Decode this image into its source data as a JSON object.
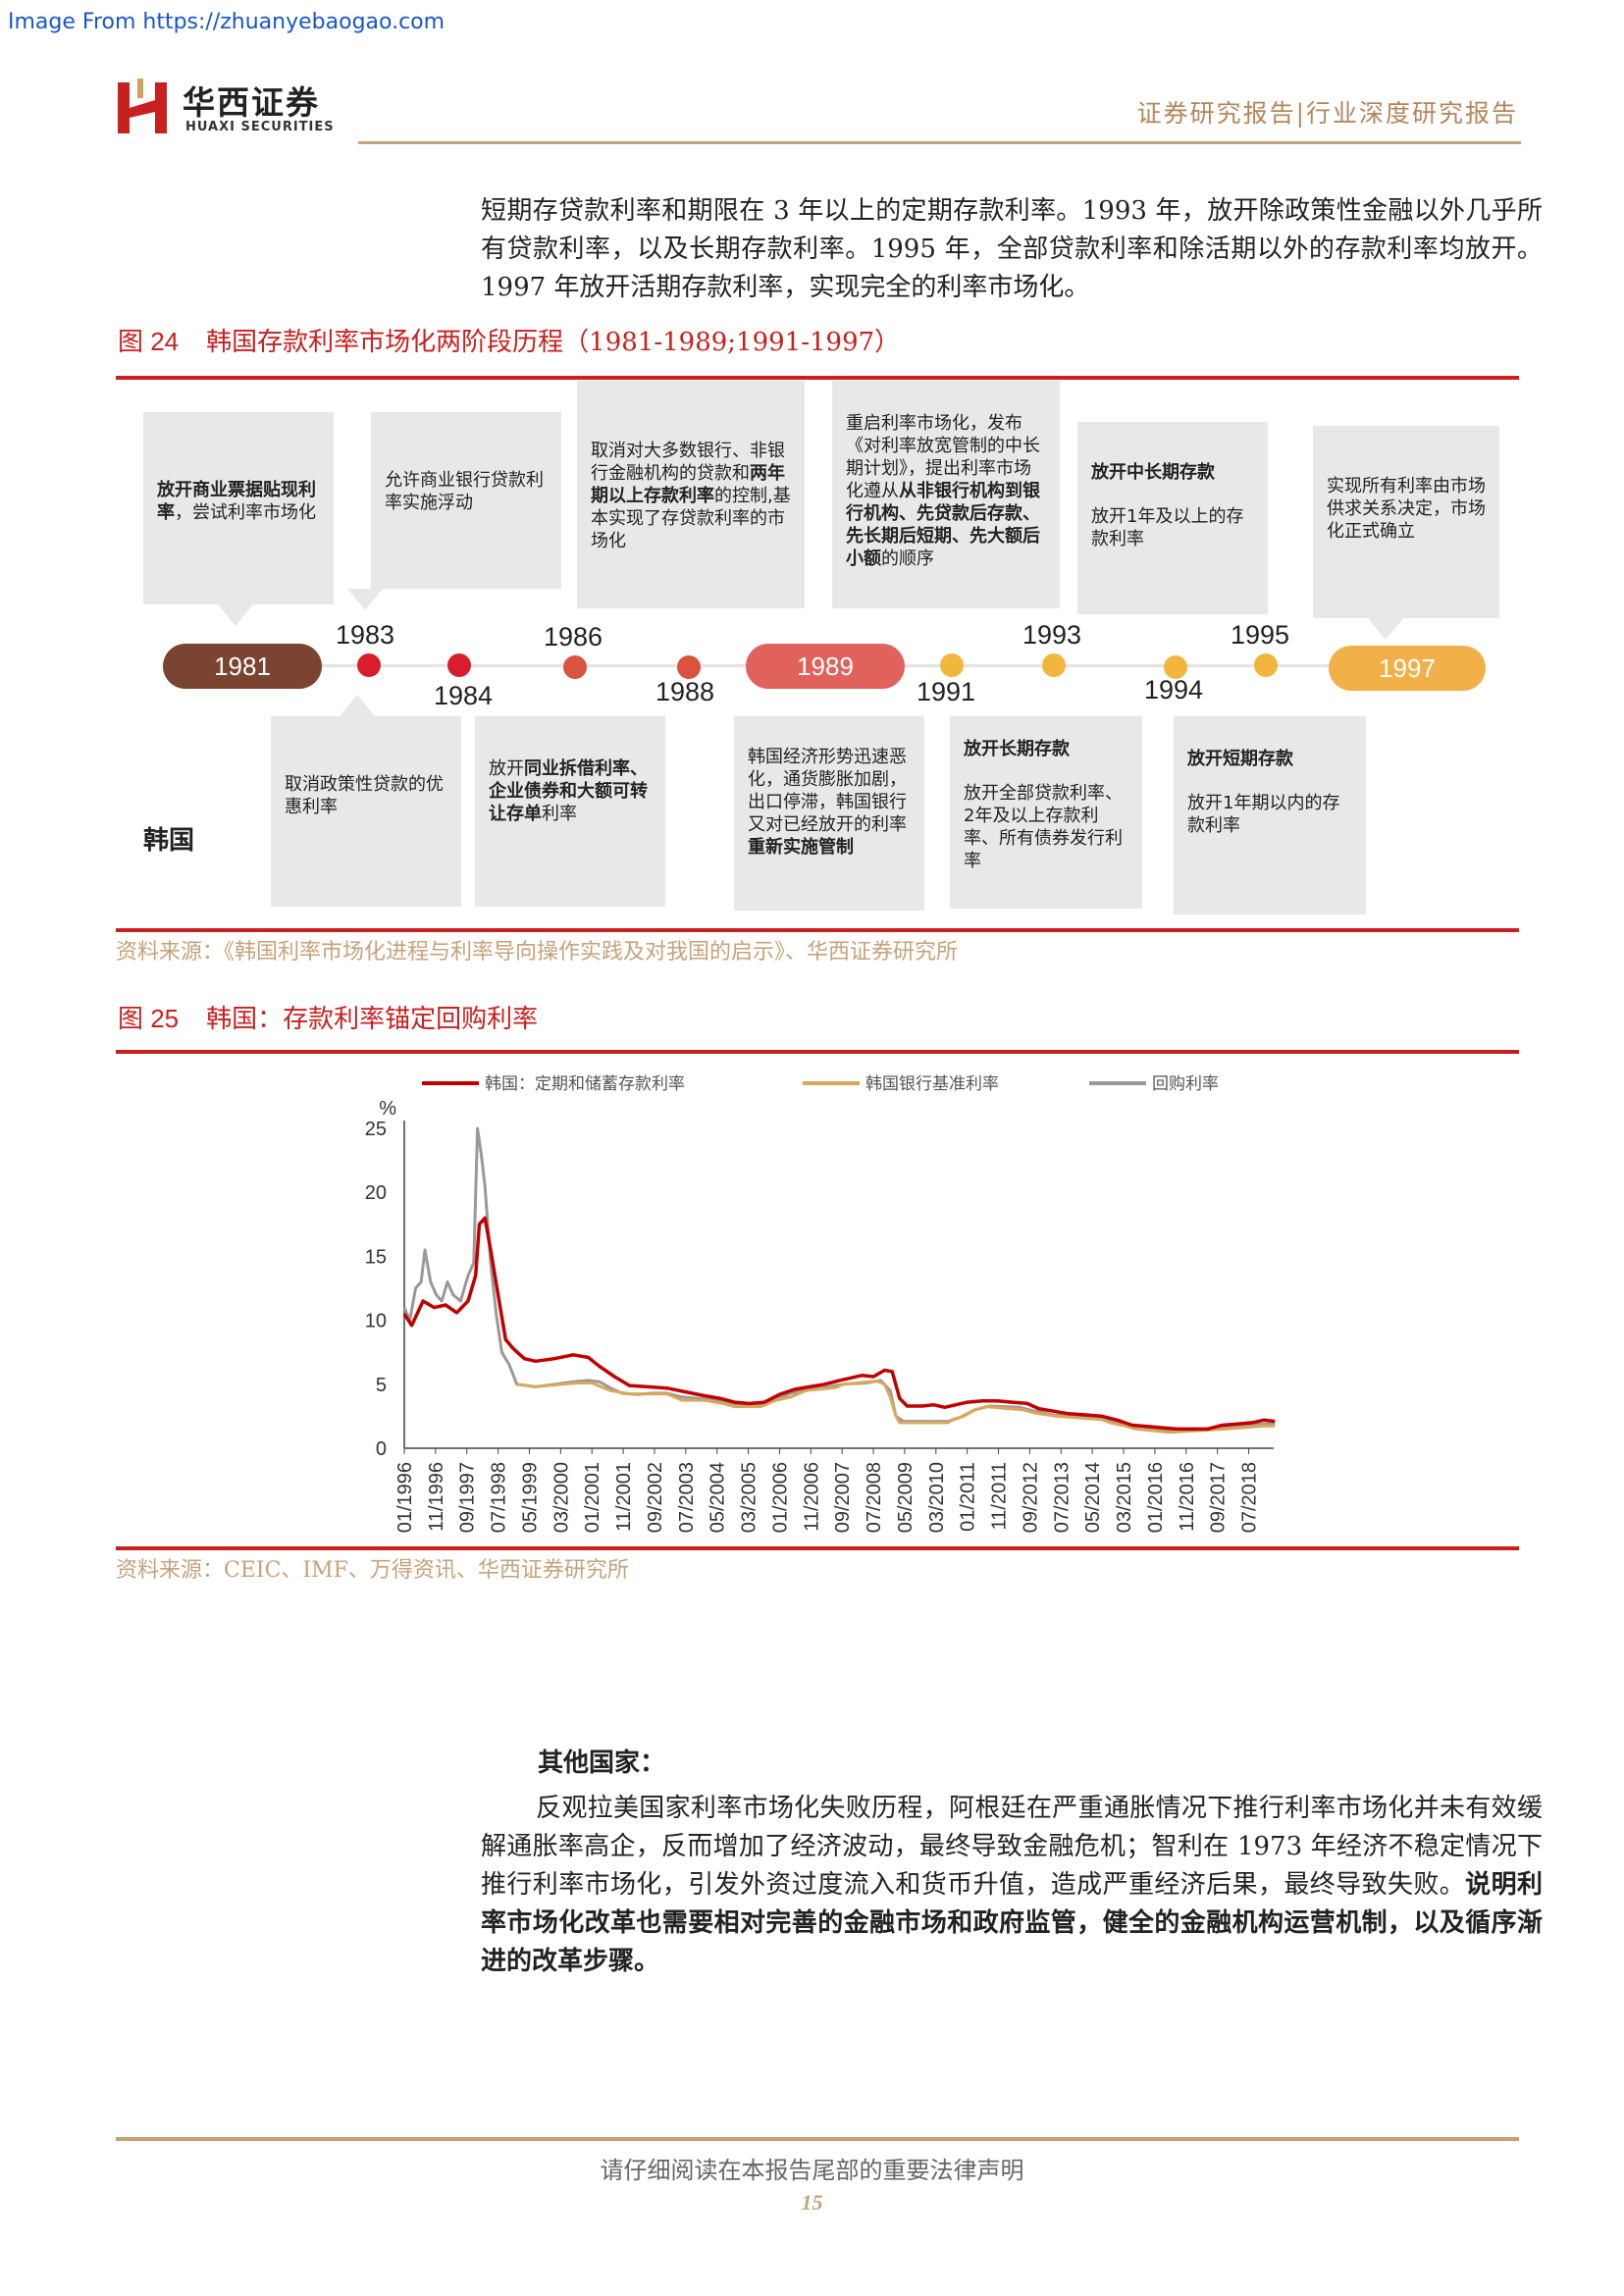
{
  "source_url": "Image From https://zhuanyebaogao.com",
  "header": {
    "logo_cn": "华西证券",
    "logo_en": "HUAXI SECURITIES",
    "report_type": "证券研究报告|行业深度研究报告"
  },
  "intro_paragraph": "短期存贷款利率和期限在 3 年以上的定期存款利率。1993 年，放开除政策性金融以外几乎所有贷款利率，以及长期存款利率。1995 年，全部贷款利率和除活期以外的存款利率均放开。1997 年放开活期存款利率，实现完全的利率市场化。",
  "figure24": {
    "number": "图 24",
    "title": "韩国存款利率市场化两阶段历程（1981-1989;1991-1997）",
    "country_label": "韩国",
    "years": {
      "y1981": "1981",
      "y1983": "1983",
      "y1984": "1984",
      "y1986": "1986",
      "y1988": "1988",
      "y1989": "1989",
      "y1991": "1991",
      "y1993": "1993",
      "y1994": "1994",
      "y1995": "1995",
      "y1997": "1997"
    },
    "top_boxes": {
      "b1981_bold": "放开商业票据贴现利率",
      "b1981_rest": "，尝试利率市场化",
      "b1983": "允许商业银行贷款利率实施浮动",
      "b1988_a": "取消对大多数银行、非银行金融机构的贷款和",
      "b1988_bold": "两年期以上存款利率",
      "b1988_b": "的控制,基本实现了存贷款利率的市场化",
      "b1991_a": "重启利率市场化，发布《对利率放宽管制的中长期计划》，提出利率市场化遵从",
      "b1991_bold": "从非银行机构到银行机构、先贷款后存款、先长期后短期、先大额后小额",
      "b1991_b": "的顺序",
      "b1993_title": "放开中长期存款",
      "b1993_text": "放开1年及以上的存款利率",
      "b1997": "实现所有利率由市场供求关系决定，市场化正式确立"
    },
    "bottom_boxes": {
      "b1984": "取消政策性贷款的优惠利率",
      "b1986_a": "放开",
      "b1986_bold": "同业拆借利率、企业债券和大额可转让存单",
      "b1986_b": "利率",
      "b1989_a": "韩国经济形势迅速恶化，通货膨胀加剧，出口停滞，韩国银行又对已经放开的利率",
      "b1989_bold": "重新实施管制",
      "b1994_title": "放开长期存款",
      "b1994_text": "放开全部贷款利率、2年及以上存款利率、所有债券发行利率",
      "b1995_title": "放开短期存款",
      "b1995_text": "放开1年期以内的存款利率"
    },
    "source": "资料来源：《韩国利率市场化进程与利率导向操作实践及对我国的启示》、华西证券研究所"
  },
  "figure25": {
    "number": "图 25",
    "title": "韩国：存款利率锚定回购利率",
    "source": "资料来源：CEIC、IMF、万得资讯、华西证券研究所"
  },
  "chart_data": {
    "type": "line",
    "ylabel": "%",
    "ylim": [
      0,
      25
    ],
    "yticks": [
      0,
      5,
      10,
      15,
      20,
      25
    ],
    "x_tick_labels": [
      "01/1996",
      "11/1996",
      "09/1997",
      "07/1998",
      "05/1999",
      "03/2000",
      "01/2001",
      "11/2001",
      "09/2002",
      "07/2003",
      "05/2004",
      "03/2005",
      "01/2006",
      "11/2006",
      "09/2007",
      "07/2008",
      "05/2009",
      "03/2010",
      "01/2011",
      "11/2011",
      "09/2012",
      "07/2013",
      "05/2014",
      "03/2015",
      "01/2016",
      "11/2016",
      "09/2017",
      "07/2018"
    ],
    "x_start": "1996-01",
    "x_end": "2019-03",
    "series": [
      {
        "name": "韩国：定期和储蓄存款利率",
        "color": "#c00000",
        "points": [
          [
            1996.0,
            10.5
          ],
          [
            1996.2,
            9.6
          ],
          [
            1996.5,
            11.5
          ],
          [
            1996.8,
            11.0
          ],
          [
            1997.1,
            11.2
          ],
          [
            1997.4,
            10.6
          ],
          [
            1997.7,
            11.5
          ],
          [
            1997.9,
            13.5
          ],
          [
            1998.0,
            17.5
          ],
          [
            1998.15,
            18.0
          ],
          [
            1998.3,
            15.5
          ],
          [
            1998.5,
            12.0
          ],
          [
            1998.7,
            8.5
          ],
          [
            1998.9,
            7.8
          ],
          [
            1999.2,
            7.0
          ],
          [
            1999.5,
            6.8
          ],
          [
            2000.0,
            7.0
          ],
          [
            2000.5,
            7.3
          ],
          [
            2000.9,
            7.1
          ],
          [
            2001.2,
            6.4
          ],
          [
            2001.6,
            5.6
          ],
          [
            2002.0,
            4.9
          ],
          [
            2002.5,
            4.8
          ],
          [
            2003.0,
            4.7
          ],
          [
            2003.5,
            4.4
          ],
          [
            2004.0,
            4.1
          ],
          [
            2004.4,
            3.9
          ],
          [
            2004.8,
            3.6
          ],
          [
            2005.2,
            3.5
          ],
          [
            2005.6,
            3.6
          ],
          [
            2006.0,
            4.2
          ],
          [
            2006.4,
            4.6
          ],
          [
            2006.8,
            4.8
          ],
          [
            2007.2,
            5.0
          ],
          [
            2007.6,
            5.3
          ],
          [
            2007.9,
            5.5
          ],
          [
            2008.2,
            5.7
          ],
          [
            2008.5,
            5.6
          ],
          [
            2008.8,
            6.1
          ],
          [
            2009.0,
            6.0
          ],
          [
            2009.2,
            3.9
          ],
          [
            2009.4,
            3.3
          ],
          [
            2009.8,
            3.3
          ],
          [
            2010.1,
            3.4
          ],
          [
            2010.4,
            3.2
          ],
          [
            2010.7,
            3.4
          ],
          [
            2011.0,
            3.6
          ],
          [
            2011.4,
            3.7
          ],
          [
            2011.8,
            3.7
          ],
          [
            2012.2,
            3.6
          ],
          [
            2012.6,
            3.5
          ],
          [
            2012.9,
            3.1
          ],
          [
            2013.3,
            2.9
          ],
          [
            2013.7,
            2.7
          ],
          [
            2014.2,
            2.6
          ],
          [
            2014.6,
            2.5
          ],
          [
            2015.0,
            2.2
          ],
          [
            2015.4,
            1.8
          ],
          [
            2015.8,
            1.7
          ],
          [
            2016.2,
            1.6
          ],
          [
            2016.6,
            1.5
          ],
          [
            2017.0,
            1.5
          ],
          [
            2017.4,
            1.5
          ],
          [
            2017.8,
            1.8
          ],
          [
            2018.2,
            1.9
          ],
          [
            2018.6,
            2.0
          ],
          [
            2018.9,
            2.2
          ],
          [
            2019.2,
            2.1
          ]
        ]
      },
      {
        "name": "韩国银行基准利率",
        "color": "#d9a75c",
        "points": [
          [
            1999.0,
            5.0
          ],
          [
            1999.5,
            4.8
          ],
          [
            2000.2,
            5.0
          ],
          [
            2000.6,
            5.1
          ],
          [
            2001.0,
            5.1
          ],
          [
            2001.5,
            4.5
          ],
          [
            2002.0,
            4.25
          ],
          [
            2002.5,
            4.25
          ],
          [
            2003.0,
            4.25
          ],
          [
            2003.4,
            3.75
          ],
          [
            2004.0,
            3.75
          ],
          [
            2004.5,
            3.5
          ],
          [
            2004.8,
            3.25
          ],
          [
            2005.5,
            3.25
          ],
          [
            2005.9,
            3.75
          ],
          [
            2006.3,
            4.0
          ],
          [
            2006.7,
            4.5
          ],
          [
            2007.5,
            4.75
          ],
          [
            2007.7,
            5.0
          ],
          [
            2008.6,
            5.25
          ],
          [
            2008.8,
            5.0
          ],
          [
            2008.95,
            4.0
          ],
          [
            2009.1,
            2.5
          ],
          [
            2009.2,
            2.0
          ],
          [
            2010.5,
            2.0
          ],
          [
            2010.6,
            2.25
          ],
          [
            2010.9,
            2.5
          ],
          [
            2011.2,
            3.0
          ],
          [
            2011.5,
            3.25
          ],
          [
            2012.5,
            3.0
          ],
          [
            2012.8,
            2.75
          ],
          [
            2013.4,
            2.5
          ],
          [
            2014.6,
            2.25
          ],
          [
            2014.8,
            2.0
          ],
          [
            2015.2,
            1.75
          ],
          [
            2015.5,
            1.5
          ],
          [
            2016.4,
            1.25
          ],
          [
            2017.9,
            1.5
          ],
          [
            2018.9,
            1.75
          ],
          [
            2019.2,
            1.75
          ]
        ]
      },
      {
        "name": "回购利率",
        "color": "#999999",
        "points": [
          [
            1996.0,
            11.0
          ],
          [
            1996.15,
            10.0
          ],
          [
            1996.3,
            12.5
          ],
          [
            1996.45,
            13.0
          ],
          [
            1996.55,
            15.5
          ],
          [
            1996.7,
            13.0
          ],
          [
            1996.85,
            12.0
          ],
          [
            1997.0,
            11.5
          ],
          [
            1997.15,
            13.0
          ],
          [
            1997.3,
            12.0
          ],
          [
            1997.5,
            11.5
          ],
          [
            1997.7,
            13.5
          ],
          [
            1997.85,
            14.5
          ],
          [
            1997.95,
            25.0
          ],
          [
            1998.05,
            23.0
          ],
          [
            1998.15,
            20.5
          ],
          [
            1998.3,
            14.5
          ],
          [
            1998.45,
            10.5
          ],
          [
            1998.6,
            7.5
          ],
          [
            1998.8,
            6.5
          ],
          [
            1999.0,
            5.0
          ],
          [
            1999.5,
            4.8
          ],
          [
            2000.0,
            5.0
          ],
          [
            2000.5,
            5.2
          ],
          [
            2000.9,
            5.3
          ],
          [
            2001.2,
            5.2
          ],
          [
            2001.5,
            4.7
          ],
          [
            2001.8,
            4.3
          ],
          [
            2002.2,
            4.2
          ],
          [
            2002.6,
            4.3
          ],
          [
            2003.0,
            4.3
          ],
          [
            2003.4,
            4.0
          ],
          [
            2003.8,
            3.9
          ],
          [
            2004.2,
            3.8
          ],
          [
            2004.6,
            3.6
          ],
          [
            2005.0,
            3.4
          ],
          [
            2005.5,
            3.4
          ],
          [
            2005.9,
            3.8
          ],
          [
            2006.3,
            4.3
          ],
          [
            2006.8,
            4.6
          ],
          [
            2007.3,
            4.8
          ],
          [
            2007.7,
            5.0
          ],
          [
            2008.3,
            5.1
          ],
          [
            2008.7,
            5.3
          ],
          [
            2008.95,
            4.5
          ],
          [
            2009.1,
            2.5
          ],
          [
            2009.3,
            2.1
          ],
          [
            2010.5,
            2.1
          ],
          [
            2010.8,
            2.4
          ],
          [
            2011.2,
            3.0
          ],
          [
            2011.6,
            3.3
          ],
          [
            2012.4,
            3.2
          ],
          [
            2012.8,
            2.9
          ],
          [
            2013.3,
            2.6
          ],
          [
            2014.5,
            2.5
          ],
          [
            2014.8,
            2.1
          ],
          [
            2015.3,
            1.8
          ],
          [
            2015.7,
            1.6
          ],
          [
            2016.5,
            1.3
          ],
          [
            2017.8,
            1.6
          ],
          [
            2018.9,
            1.9
          ],
          [
            2019.2,
            1.9
          ]
        ]
      }
    ]
  },
  "other_countries": {
    "heading": "其他国家：",
    "para_normal": "反观拉美国家利率市场化失败历程，阿根廷在严重通胀情况下推行利率市场化并未有效缓解通胀率高企，反而增加了经济波动，最终导致金融危机；智利在 1973 年经济不稳定情况下推行利率市场化，引发外资过度流入和货币升值，造成严重经济后果，最终导致失败。",
    "para_bold": "说明利率市场化改革也需要相对完善的金融市场和政府监管，健全的金融机构运营机制，以及循序渐进的改革步骤。"
  },
  "footer": {
    "notice": "请仔细阅读在本报告尾部的重要法律声明",
    "page_number": "15"
  }
}
